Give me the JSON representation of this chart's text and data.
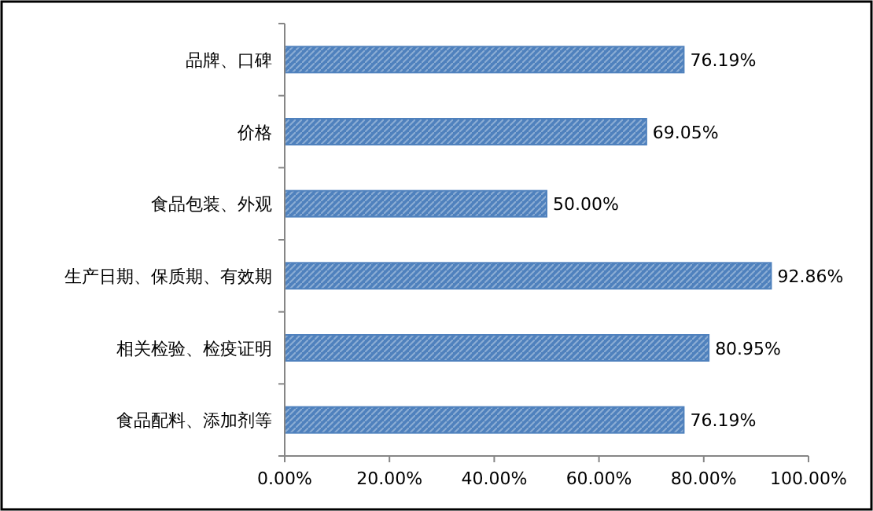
{
  "chart_data": {
    "type": "bar",
    "orientation": "horizontal",
    "categories": [
      "品牌、口碑",
      "价格",
      "食品包装、外观",
      "生产日期、保质期、有效期",
      "相关检验、检疫证明",
      "食品配料、添加剂等"
    ],
    "values": [
      76.19,
      69.05,
      50.0,
      92.86,
      80.95,
      76.19
    ],
    "value_labels": [
      "76.19%",
      "69.05%",
      "50.00%",
      "92.86%",
      "80.95%",
      "76.19%"
    ],
    "color": "#4f81bd",
    "xlim": [
      0,
      100
    ],
    "xticks": [
      {
        "value": 0,
        "label": "0.00%"
      },
      {
        "value": 20,
        "label": "20.00%"
      },
      {
        "value": 40,
        "label": "40.00%"
      },
      {
        "value": 60,
        "label": "60.00%"
      },
      {
        "value": 80,
        "label": "80.00%"
      },
      {
        "value": 100,
        "label": "100.00%"
      }
    ]
  }
}
